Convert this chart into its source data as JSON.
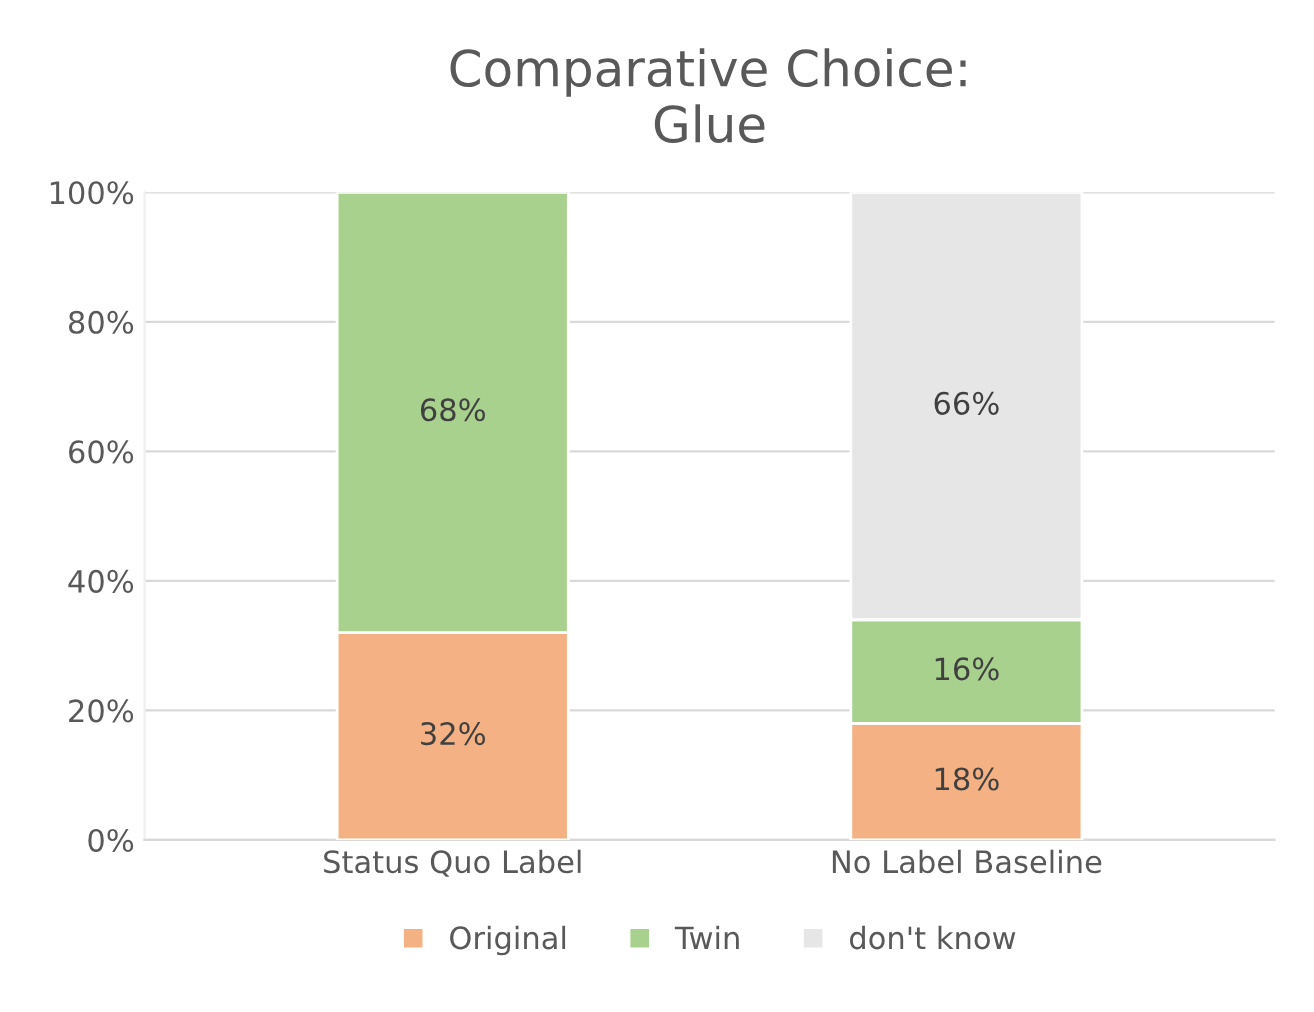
{
  "chart_data": {
    "type": "bar",
    "title": "Comparative Choice:\nGlue",
    "categories": [
      "Status Quo Label",
      "No Label Baseline"
    ],
    "stacked": true,
    "series": [
      {
        "name": "Original",
        "color": "#f4b183",
        "values": [
          32,
          18
        ],
        "value_labels": [
          "32%",
          "18%"
        ]
      },
      {
        "name": "Twin",
        "color": "#a9d18e",
        "values": [
          68,
          16
        ],
        "value_labels": [
          "68%",
          "16%"
        ]
      },
      {
        "name": "don't know",
        "color": "#e6e6e6",
        "values": [
          null,
          66
        ],
        "value_labels": [
          null,
          "66%"
        ]
      }
    ],
    "ylim": [
      0,
      100
    ],
    "yticks": [
      {
        "value": 0,
        "label": "0%"
      },
      {
        "value": 20,
        "label": "20%"
      },
      {
        "value": 40,
        "label": "40%"
      },
      {
        "value": 60,
        "label": "60%"
      },
      {
        "value": 80,
        "label": "80%"
      },
      {
        "value": 100,
        "label": "100%"
      }
    ],
    "grid": "y",
    "legend": "bottom"
  }
}
